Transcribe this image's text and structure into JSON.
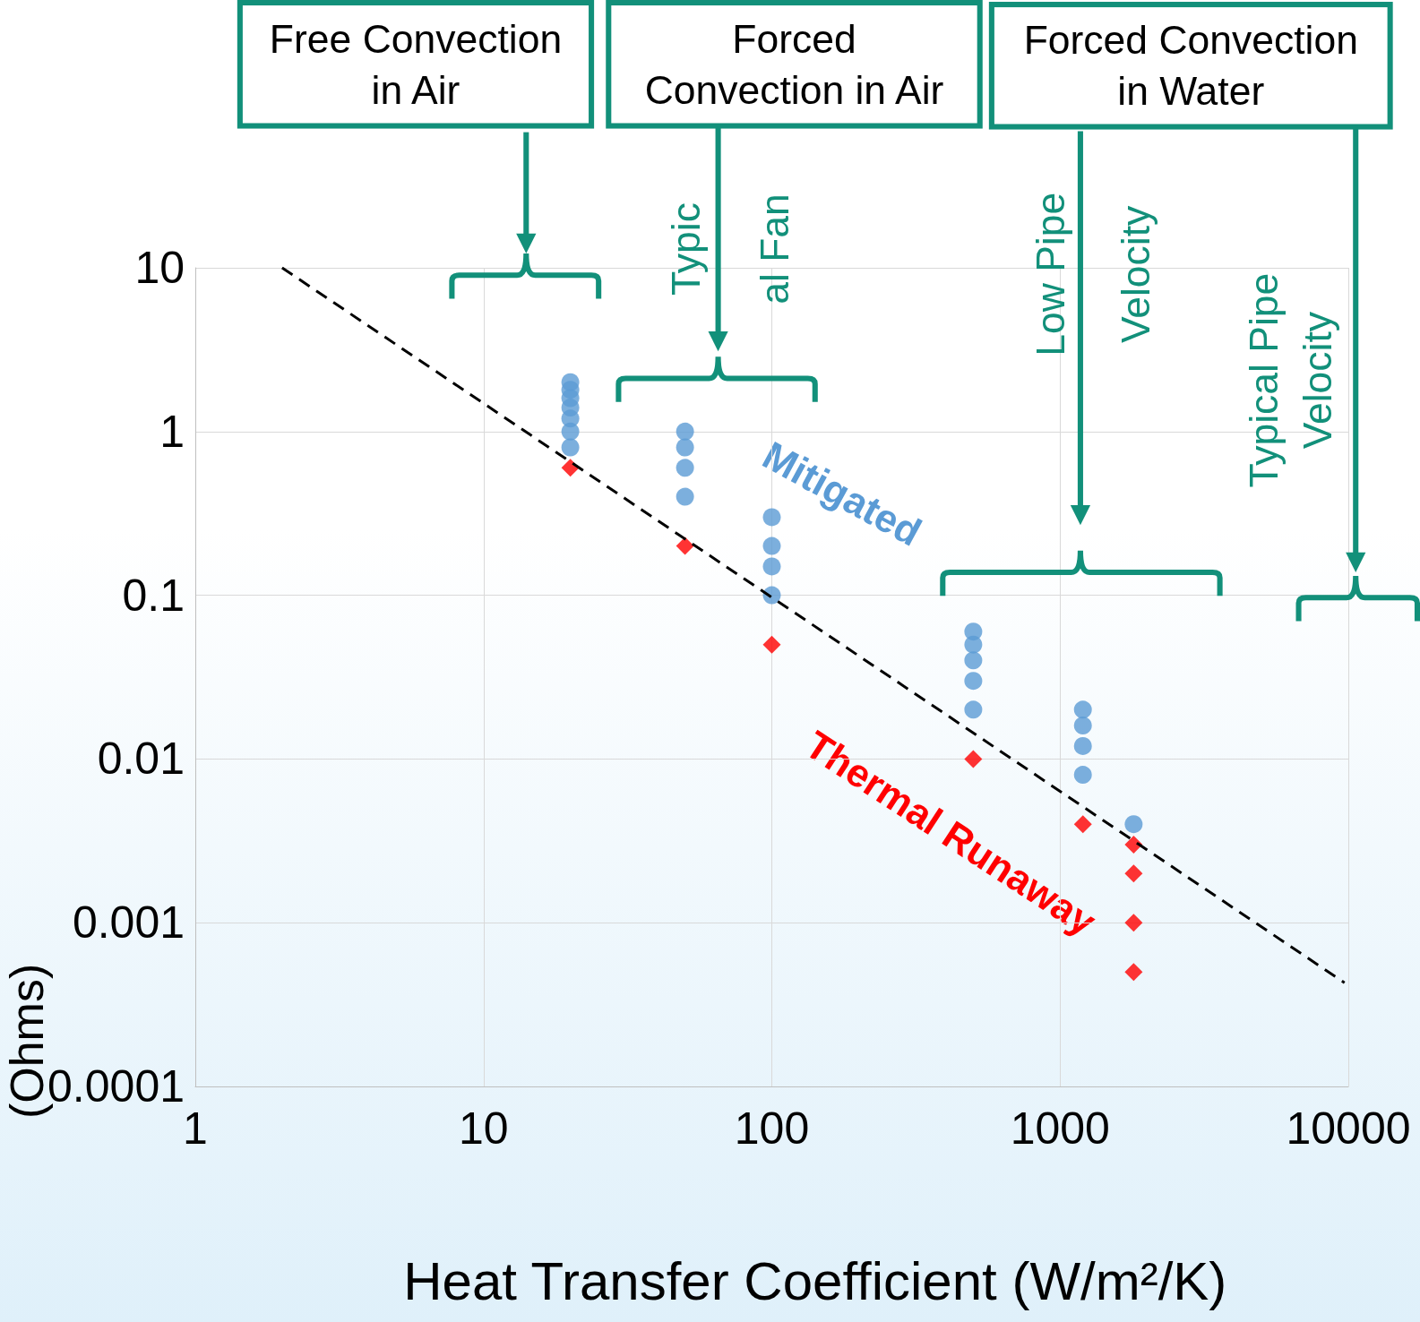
{
  "chart_data": {
    "type": "scatter",
    "xlabel": "Heat Transfer Coefficient (W/m²/K)",
    "ylabel": "(Ohms)",
    "log": "xy",
    "xlim": [
      1,
      10000
    ],
    "xticks": [
      1,
      10,
      100,
      1000,
      10000
    ],
    "ylim": [
      0.0001,
      10
    ],
    "yticks": [
      0.0001,
      0.001,
      0.01,
      0.1,
      1,
      10
    ],
    "grid": true,
    "legend": false,
    "annotations": [
      "Free Convection\nin Air",
      "Forced\nConvection in Air",
      "Forced Convection\nin Water",
      "Typic\nal Fan",
      "Low Pipe\nVelocity",
      "Typical Pipe\nVelocity"
    ],
    "series": [
      {
        "name": "Mitigated",
        "marker": "circle",
        "color": "#5b9bd5",
        "x": [
          20,
          20,
          20,
          20,
          20,
          20,
          20,
          50,
          50,
          50,
          50,
          100,
          100,
          100,
          100,
          500,
          500,
          500,
          500,
          500,
          1200,
          1200,
          1200,
          1200,
          1800
        ],
        "values": [
          2,
          1.8,
          1.6,
          1.4,
          1.2,
          1,
          0.8,
          1,
          0.8,
          0.6,
          0.4,
          0.3,
          0.2,
          0.15,
          0.1,
          0.06,
          0.05,
          0.04,
          0.03,
          0.02,
          0.02,
          0.016,
          0.012,
          0.008,
          0.004
        ]
      },
      {
        "name": "Thermal Runaway",
        "marker": "diamond",
        "color": "#ff0000",
        "x": [
          20,
          50,
          100,
          500,
          1200,
          1800,
          1800,
          1800,
          1800
        ],
        "values": [
          0.6,
          0.2,
          0.05,
          0.01,
          0.004,
          0.003,
          0.002,
          0.001,
          0.0005
        ]
      },
      {
        "type": "line",
        "marker": "none",
        "line_style": "dashed",
        "color": "#000000",
        "x": [
          2,
          9700
        ],
        "values": [
          10,
          0.00043
        ]
      }
    ]
  }
}
